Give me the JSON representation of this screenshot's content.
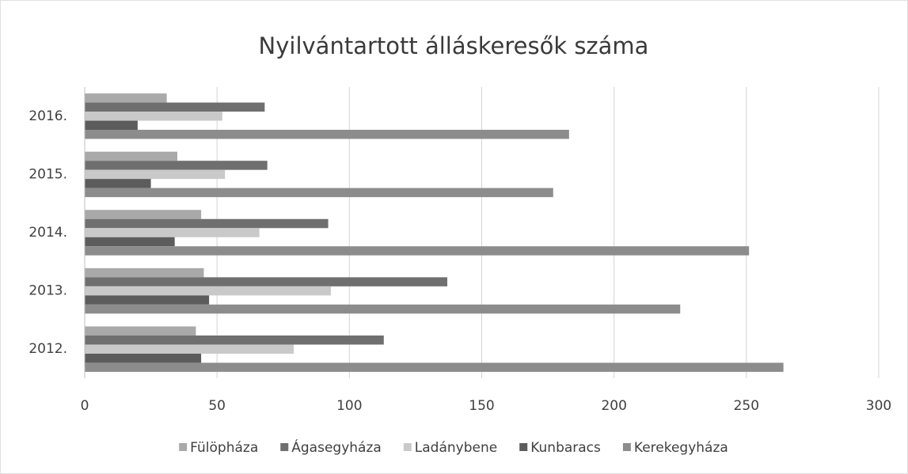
{
  "chart_data": {
    "type": "barh",
    "title": "Nyilvántartott álláskeresők száma",
    "categories": [
      "2012.",
      "2013.",
      "2014.",
      "2015.",
      "2016."
    ],
    "series": [
      {
        "name": "Fülöpháza",
        "color": "#a9a9a9",
        "values": [
          42,
          45,
          44,
          35,
          31
        ]
      },
      {
        "name": "Ágasegyháza",
        "color": "#6f6f6f",
        "values": [
          113,
          137,
          92,
          69,
          68
        ]
      },
      {
        "name": "Ladánybene",
        "color": "#c9c9c9",
        "values": [
          79,
          93,
          66,
          53,
          52
        ]
      },
      {
        "name": "Kunbaracs",
        "color": "#5c5c5c",
        "values": [
          44,
          47,
          34,
          25,
          20
        ]
      },
      {
        "name": "Kerekegyháza",
        "color": "#8c8c8c",
        "values": [
          264,
          225,
          251,
          177,
          183
        ]
      }
    ],
    "xlim": [
      0,
      300
    ],
    "xticks": [
      0,
      50,
      100,
      150,
      200,
      250,
      300
    ],
    "grid": true,
    "legend": "bottom"
  }
}
